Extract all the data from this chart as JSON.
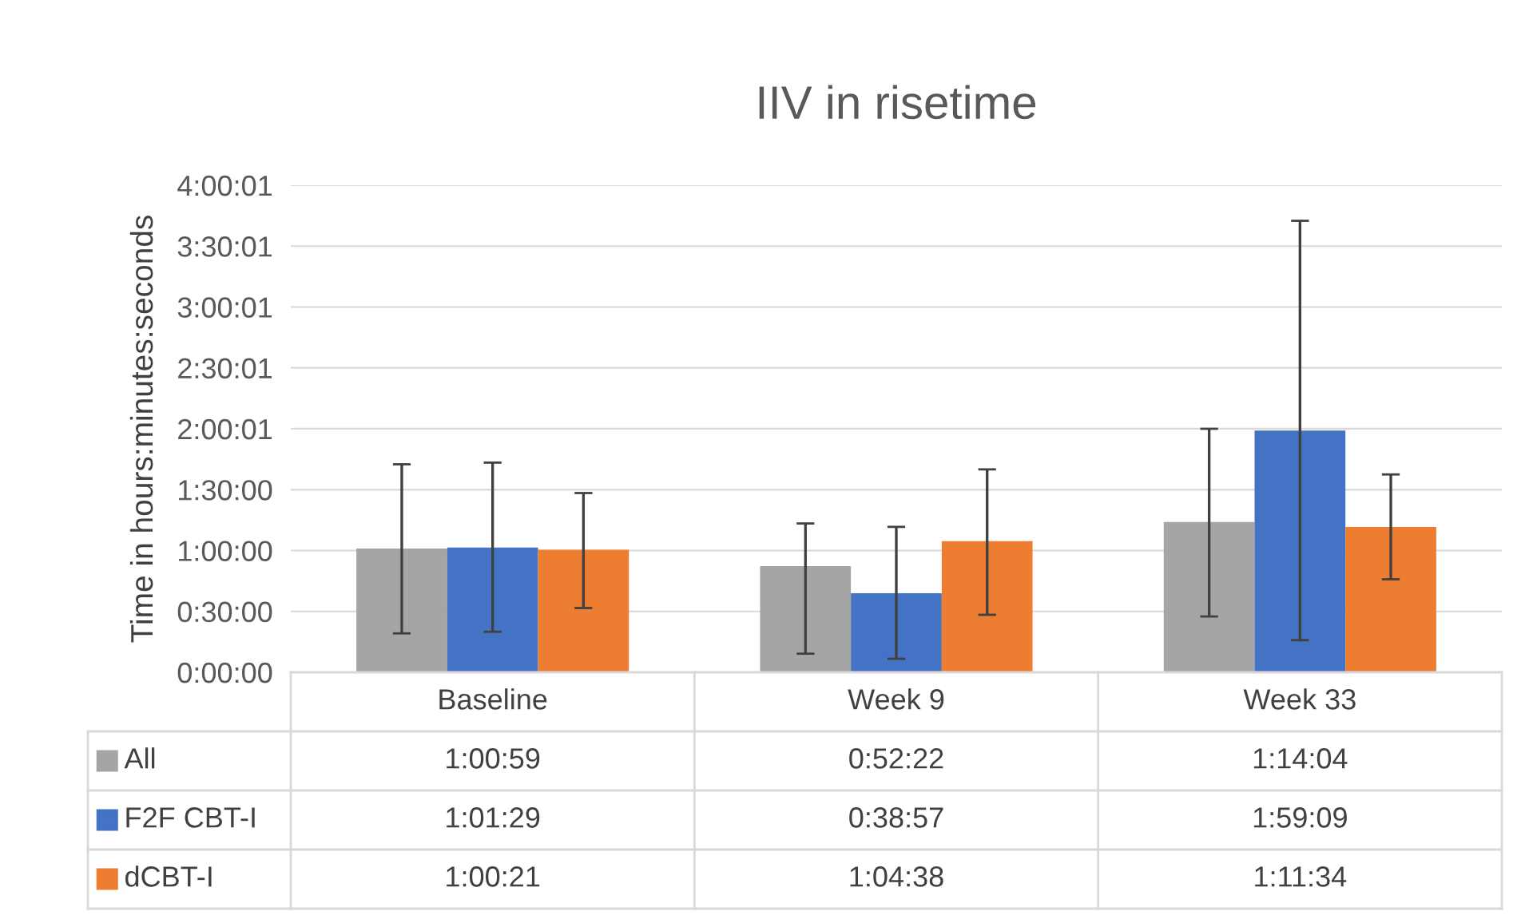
{
  "chart_data": {
    "type": "bar",
    "title": "IIV in risetime",
    "ylabel": "Time in hours:minutes:seconds",
    "categories": [
      "Baseline",
      "Week 9",
      "Week 33"
    ],
    "series": [
      {
        "name": "All",
        "color": "#a5a5a5",
        "values": [
          3659,
          3142,
          4444
        ],
        "value_labels": [
          "1:00:59",
          "0:52:22",
          "1:14:04"
        ],
        "errors": [
          [
            1150,
            6150
          ],
          [
            550,
            4400
          ],
          [
            1650,
            7200
          ]
        ]
      },
      {
        "name": "F2F CBT-I",
        "color": "#4472c4",
        "values": [
          3689,
          2337,
          7149
        ],
        "value_labels": [
          "1:01:29",
          "0:38:57",
          "1:59:09"
        ],
        "errors": [
          [
            1200,
            6200
          ],
          [
            400,
            4300
          ],
          [
            950,
            13350
          ]
        ]
      },
      {
        "name": "dCBT-I",
        "color": "#ed7d31",
        "values": [
          3621,
          3878,
          4294
        ],
        "value_labels": [
          "1:00:21",
          "1:04:38",
          "1:11:34"
        ],
        "errors": [
          [
            1900,
            5300
          ],
          [
            1700,
            6000
          ],
          [
            2750,
            5850
          ]
        ]
      }
    ],
    "ylim": [
      0,
      14401
    ],
    "yticks": [
      {
        "value": 0,
        "label": "0:00:00"
      },
      {
        "value": 1800,
        "label": "0:30:00"
      },
      {
        "value": 3600,
        "label": "1:00:00"
      },
      {
        "value": 5400,
        "label": "1:30:00"
      },
      {
        "value": 7201,
        "label": "2:00:01"
      },
      {
        "value": 9001,
        "label": "2:30:01"
      },
      {
        "value": 10801,
        "label": "3:00:01"
      },
      {
        "value": 12601,
        "label": "3:30:01"
      },
      {
        "value": 14401,
        "label": "4:00:01"
      }
    ],
    "grid": "y",
    "legend": "bottom"
  }
}
